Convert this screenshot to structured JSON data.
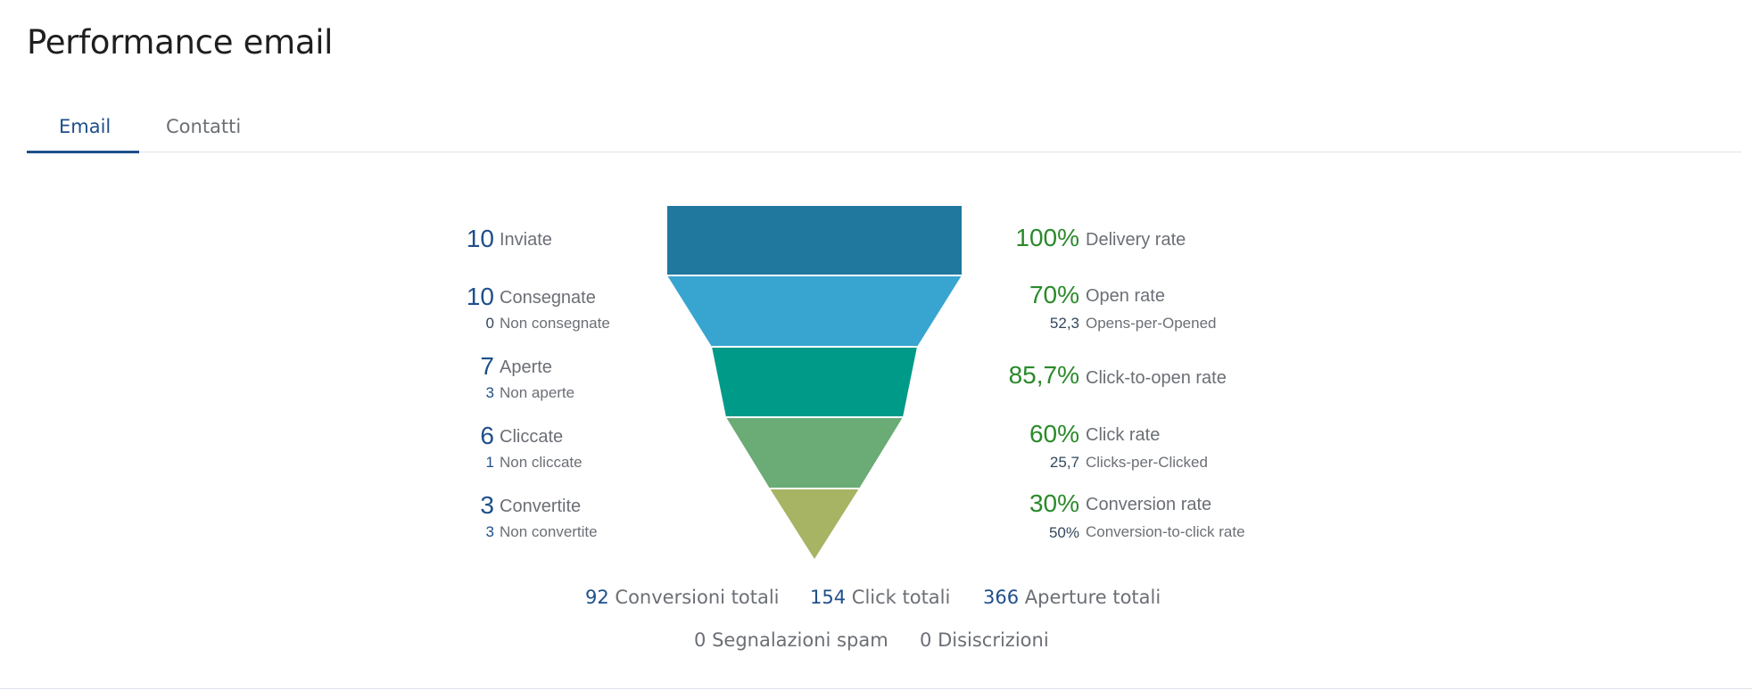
{
  "header": {
    "title": "Performance email"
  },
  "tabs": [
    {
      "label": "Email",
      "active": true
    },
    {
      "label": "Contatti",
      "active": false
    }
  ],
  "funnel": {
    "colors": [
      "#21789e",
      "#38a5d1",
      "#009a88",
      "#6aab76",
      "#a6b463"
    ],
    "left": [
      {
        "value": "10",
        "label": "Inviate"
      },
      {
        "value": "10",
        "label": "Consegnate",
        "sub_value": "0",
        "sub_label": "Non consegnate"
      },
      {
        "value": "7",
        "label": "Aperte",
        "sub_value": "3",
        "sub_label": "Non aperte"
      },
      {
        "value": "6",
        "label": "Cliccate",
        "sub_value": "1",
        "sub_label": "Non cliccate"
      },
      {
        "value": "3",
        "label": "Convertite",
        "sub_value": "3",
        "sub_label": "Non convertite"
      }
    ],
    "right": [
      {
        "value": "100%",
        "label": "Delivery rate"
      },
      {
        "value": "70%",
        "label": "Open rate",
        "sub_value": "52,3",
        "sub_label": "Opens-per-Opened"
      },
      {
        "value": "85,7%",
        "label": "Click-to-open rate"
      },
      {
        "value": "60%",
        "label": "Click rate",
        "sub_value": "25,7",
        "sub_label": "Clicks-per-Clicked"
      },
      {
        "value": "30%",
        "label": "Conversion rate",
        "sub_value": "50%",
        "sub_label": "Conversion-to-click rate"
      }
    ]
  },
  "totals": {
    "conversions": {
      "value": "92",
      "label": "Conversioni totali"
    },
    "clicks": {
      "value": "154",
      "label": "Click totali"
    },
    "opens": {
      "value": "366",
      "label": "Aperture totali"
    },
    "spam": {
      "value": "0",
      "label": "Segnalazioni spam"
    },
    "unsubscribes": {
      "value": "0",
      "label": "Disiscrizioni"
    }
  }
}
